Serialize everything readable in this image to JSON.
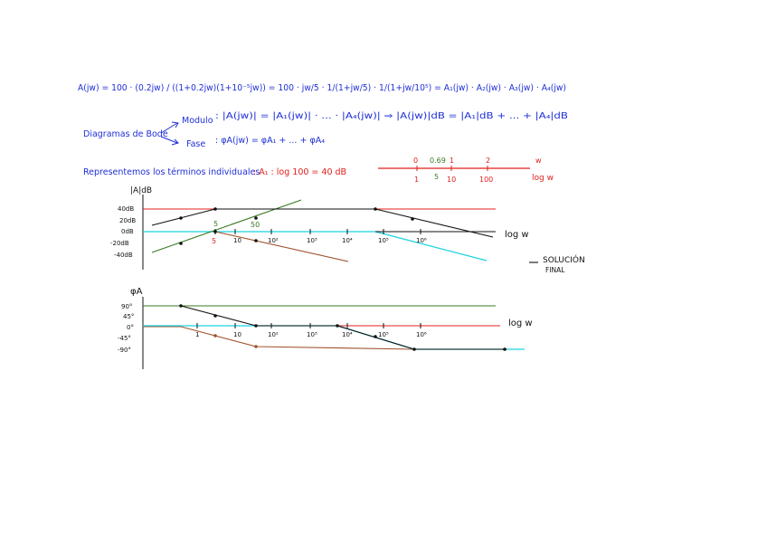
{
  "formula": {
    "line1": "A(jw) = 100 · (0.2jw) / ((1+0.2jw)(1+10⁻⁵jw)) = 100 · jw/5 · 1/(1+jw/5) · 1/(1+jw/10⁵) = A₁(jw) · A₂(jw) · A₃(jw) · A₄(jw)",
    "bode_label": "Diagramas de Bode",
    "modulo_label": "Modulo",
    "modulo_expr": ": |A(jw)| = |A₁(jw)| · ... · |A₄(jw)|  ⇒  |A(jw)|dB = |A₁|dB + ... + |A₄|dB",
    "fase_label": "Fase",
    "fase_expr": ": φA(jw) = φA₁ + ... + φA₄"
  },
  "terms_note": {
    "text": "Representemos los términos individuales",
    "red_part": ": A₁ : log 100 = 40 dB"
  },
  "log_axis": {
    "top_labels": [
      "0",
      "0.69",
      "1",
      "2",
      "w"
    ],
    "bottom_labels": [
      "1",
      "5",
      "10",
      "100",
      "log w"
    ]
  },
  "magnitude_plot": {
    "title": "|A|dB",
    "y_labels": [
      "40dB",
      "20dB",
      "0dB",
      "-20dB",
      "-40dB"
    ],
    "x_labels": [
      "5",
      "10",
      "10²",
      "10³",
      "10⁴",
      "10⁵",
      "10⁶"
    ],
    "axis_label": "log w",
    "annotations": [
      "5",
      "50"
    ]
  },
  "phase_plot": {
    "title": "φA",
    "y_labels": [
      "90°",
      "45°",
      "0°",
      "-45°",
      "-90°"
    ],
    "x_labels": [
      "1",
      "10",
      "10²",
      "10³",
      "10⁴",
      "10⁵",
      "10⁶"
    ],
    "axis_label": "log w"
  },
  "solution_note": {
    "line1": "SOLUCIÓN",
    "line2": "FINAL"
  },
  "colors": {
    "blue": "#1f2fd6",
    "red": "#e0201d",
    "green": "#3a7a23",
    "brown": "#a0522d",
    "cyan": "#19d3e0",
    "black": "#111111"
  }
}
